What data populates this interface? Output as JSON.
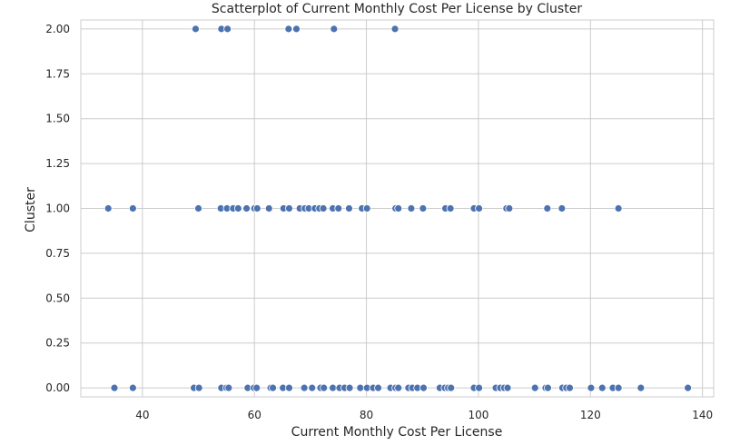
{
  "chart_data": {
    "type": "scatter",
    "title": "Scatterplot of Current Monthly Cost Per License by Cluster",
    "xlabel": "Current Monthly Cost Per License",
    "ylabel": "Cluster",
    "xlim": [
      29,
      142
    ],
    "ylim": [
      -0.05,
      2.05
    ],
    "x_ticks": [
      40,
      60,
      80,
      100,
      120,
      140
    ],
    "x_tick_labels": [
      "40",
      "60",
      "80",
      "100",
      "120",
      "140"
    ],
    "y_ticks": [
      0,
      0.25,
      0.5,
      0.75,
      1.0,
      1.25,
      1.5,
      1.75,
      2.0
    ],
    "y_tick_labels": [
      "0.00",
      "0.25",
      "0.50",
      "0.75",
      "1.00",
      "1.25",
      "1.50",
      "1.75",
      "2.00"
    ],
    "grid": true,
    "marker_color": "#4c72b0",
    "series": [
      {
        "name": "",
        "points": [
          {
            "x": 49.5,
            "y": 2
          },
          {
            "x": 54.1,
            "y": 2
          },
          {
            "x": 55.2,
            "y": 2
          },
          {
            "x": 66.1,
            "y": 2
          },
          {
            "x": 67.5,
            "y": 2
          },
          {
            "x": 74.2,
            "y": 2
          },
          {
            "x": 85.1,
            "y": 2
          },
          {
            "x": 33.9,
            "y": 1
          },
          {
            "x": 38.3,
            "y": 1
          },
          {
            "x": 50.0,
            "y": 1
          },
          {
            "x": 54.0,
            "y": 1
          },
          {
            "x": 55.1,
            "y": 1
          },
          {
            "x": 56.2,
            "y": 1
          },
          {
            "x": 57.1,
            "y": 1
          },
          {
            "x": 58.6,
            "y": 1
          },
          {
            "x": 60.0,
            "y": 1
          },
          {
            "x": 60.5,
            "y": 1
          },
          {
            "x": 62.6,
            "y": 1
          },
          {
            "x": 65.2,
            "y": 1
          },
          {
            "x": 66.2,
            "y": 1
          },
          {
            "x": 68.1,
            "y": 1
          },
          {
            "x": 69.0,
            "y": 1
          },
          {
            "x": 69.7,
            "y": 1
          },
          {
            "x": 70.8,
            "y": 1
          },
          {
            "x": 71.6,
            "y": 1
          },
          {
            "x": 72.3,
            "y": 1
          },
          {
            "x": 74.0,
            "y": 1
          },
          {
            "x": 75.0,
            "y": 1
          },
          {
            "x": 76.9,
            "y": 1
          },
          {
            "x": 79.2,
            "y": 1
          },
          {
            "x": 80.1,
            "y": 1
          },
          {
            "x": 85.2,
            "y": 1
          },
          {
            "x": 85.7,
            "y": 1
          },
          {
            "x": 88.0,
            "y": 1
          },
          {
            "x": 90.1,
            "y": 1
          },
          {
            "x": 94.1,
            "y": 1
          },
          {
            "x": 95.0,
            "y": 1
          },
          {
            "x": 99.2,
            "y": 1
          },
          {
            "x": 100.1,
            "y": 1
          },
          {
            "x": 105.0,
            "y": 1
          },
          {
            "x": 105.5,
            "y": 1
          },
          {
            "x": 112.3,
            "y": 1
          },
          {
            "x": 114.9,
            "y": 1
          },
          {
            "x": 125.0,
            "y": 1
          },
          {
            "x": 35.0,
            "y": 0
          },
          {
            "x": 38.3,
            "y": 0
          },
          {
            "x": 49.2,
            "y": 0
          },
          {
            "x": 50.1,
            "y": 0
          },
          {
            "x": 54.1,
            "y": 0
          },
          {
            "x": 55.0,
            "y": 0
          },
          {
            "x": 55.4,
            "y": 0
          },
          {
            "x": 58.8,
            "y": 0
          },
          {
            "x": 59.9,
            "y": 0
          },
          {
            "x": 60.4,
            "y": 0
          },
          {
            "x": 62.9,
            "y": 0
          },
          {
            "x": 63.3,
            "y": 0
          },
          {
            "x": 65.1,
            "y": 0
          },
          {
            "x": 66.2,
            "y": 0
          },
          {
            "x": 68.9,
            "y": 0
          },
          {
            "x": 70.3,
            "y": 0
          },
          {
            "x": 71.8,
            "y": 0
          },
          {
            "x": 72.4,
            "y": 0
          },
          {
            "x": 74.0,
            "y": 0
          },
          {
            "x": 75.2,
            "y": 0
          },
          {
            "x": 76.1,
            "y": 0
          },
          {
            "x": 77.0,
            "y": 0
          },
          {
            "x": 78.9,
            "y": 0
          },
          {
            "x": 80.1,
            "y": 0
          },
          {
            "x": 81.2,
            "y": 0
          },
          {
            "x": 82.1,
            "y": 0
          },
          {
            "x": 84.3,
            "y": 0
          },
          {
            "x": 85.2,
            "y": 0
          },
          {
            "x": 85.7,
            "y": 0
          },
          {
            "x": 87.5,
            "y": 0
          },
          {
            "x": 88.2,
            "y": 0
          },
          {
            "x": 89.1,
            "y": 0
          },
          {
            "x": 90.2,
            "y": 0
          },
          {
            "x": 93.1,
            "y": 0
          },
          {
            "x": 94.0,
            "y": 0
          },
          {
            "x": 94.6,
            "y": 0
          },
          {
            "x": 95.1,
            "y": 0
          },
          {
            "x": 99.2,
            "y": 0
          },
          {
            "x": 100.1,
            "y": 0
          },
          {
            "x": 103.1,
            "y": 0
          },
          {
            "x": 103.9,
            "y": 0
          },
          {
            "x": 104.6,
            "y": 0
          },
          {
            "x": 105.2,
            "y": 0
          },
          {
            "x": 110.1,
            "y": 0
          },
          {
            "x": 112.0,
            "y": 0
          },
          {
            "x": 112.4,
            "y": 0
          },
          {
            "x": 115.0,
            "y": 0
          },
          {
            "x": 115.7,
            "y": 0
          },
          {
            "x": 116.3,
            "y": 0
          },
          {
            "x": 120.1,
            "y": 0
          },
          {
            "x": 122.1,
            "y": 0
          },
          {
            "x": 124.0,
            "y": 0
          },
          {
            "x": 125.0,
            "y": 0
          },
          {
            "x": 129.0,
            "y": 0
          },
          {
            "x": 137.4,
            "y": 0
          }
        ]
      }
    ]
  }
}
